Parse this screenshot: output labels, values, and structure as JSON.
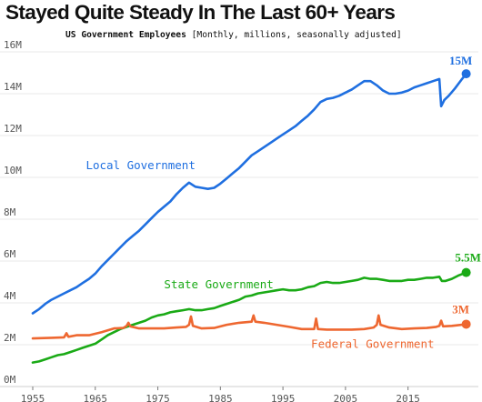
{
  "chart_data": {
    "type": "line",
    "title": "Stayed Quite Steady In The Last 60+ Years",
    "subtitle_main": "US Government Employees",
    "subtitle_note": "[Monthly, millions, seasonally adjusted]",
    "x_range": [
      1955,
      2024.5
    ],
    "ylim": [
      0,
      16
    ],
    "y_ticks": [
      0,
      2,
      4,
      6,
      8,
      10,
      12,
      14,
      16
    ],
    "y_tick_labels": [
      "0M",
      "2M",
      "4M",
      "6M",
      "8M",
      "10M",
      "12M",
      "14M",
      "16M"
    ],
    "x_ticks": [
      1955,
      1965,
      1975,
      1985,
      1995,
      2005,
      2015
    ],
    "x_tick_labels": [
      "1955",
      "1965",
      "1975",
      "1985",
      "1995",
      "2005",
      "2015"
    ],
    "grid": "horizontal",
    "series": [
      {
        "name": "Local Government",
        "color": "#1f6fe0",
        "end_label": "15M",
        "points": [
          [
            1955,
            3.5
          ],
          [
            1956,
            3.7
          ],
          [
            1957,
            3.95
          ],
          [
            1958,
            4.15
          ],
          [
            1959,
            4.3
          ],
          [
            1960,
            4.45
          ],
          [
            1961,
            4.6
          ],
          [
            1962,
            4.75
          ],
          [
            1963,
            4.95
          ],
          [
            1964,
            5.15
          ],
          [
            1965,
            5.4
          ],
          [
            1966,
            5.75
          ],
          [
            1967,
            6.05
          ],
          [
            1968,
            6.35
          ],
          [
            1969,
            6.65
          ],
          [
            1970,
            6.95
          ],
          [
            1971,
            7.2
          ],
          [
            1972,
            7.45
          ],
          [
            1973,
            7.75
          ],
          [
            1974,
            8.05
          ],
          [
            1975,
            8.35
          ],
          [
            1976,
            8.6
          ],
          [
            1977,
            8.85
          ],
          [
            1978,
            9.2
          ],
          [
            1979,
            9.5
          ],
          [
            1980,
            9.75
          ],
          [
            1981,
            9.55
          ],
          [
            1982,
            9.5
          ],
          [
            1983,
            9.45
          ],
          [
            1984,
            9.5
          ],
          [
            1985,
            9.7
          ],
          [
            1986,
            9.95
          ],
          [
            1987,
            10.2
          ],
          [
            1988,
            10.45
          ],
          [
            1989,
            10.75
          ],
          [
            1990,
            11.05
          ],
          [
            1991,
            11.25
          ],
          [
            1992,
            11.45
          ],
          [
            1993,
            11.65
          ],
          [
            1994,
            11.85
          ],
          [
            1995,
            12.05
          ],
          [
            1996,
            12.25
          ],
          [
            1997,
            12.45
          ],
          [
            1998,
            12.7
          ],
          [
            1999,
            12.95
          ],
          [
            2000,
            13.25
          ],
          [
            2001,
            13.6
          ],
          [
            2002,
            13.75
          ],
          [
            2003,
            13.8
          ],
          [
            2004,
            13.9
          ],
          [
            2005,
            14.05
          ],
          [
            2006,
            14.2
          ],
          [
            2007,
            14.4
          ],
          [
            2008,
            14.6
          ],
          [
            2009,
            14.6
          ],
          [
            2010,
            14.4
          ],
          [
            2011,
            14.15
          ],
          [
            2012,
            14.0
          ],
          [
            2013,
            14.0
          ],
          [
            2014,
            14.05
          ],
          [
            2015,
            14.15
          ],
          [
            2016,
            14.3
          ],
          [
            2017,
            14.4
          ],
          [
            2018,
            14.5
          ],
          [
            2019,
            14.6
          ],
          [
            2020,
            14.7
          ],
          [
            2020.3,
            13.4
          ],
          [
            2020.8,
            13.7
          ],
          [
            2021.5,
            13.9
          ],
          [
            2022.5,
            14.25
          ],
          [
            2023.5,
            14.65
          ],
          [
            2024.3,
            14.95
          ]
        ]
      },
      {
        "name": "State Government",
        "color": "#1aaa16",
        "end_label": "5.5M",
        "points": [
          [
            1955,
            1.15
          ],
          [
            1956,
            1.2
          ],
          [
            1957,
            1.3
          ],
          [
            1958,
            1.4
          ],
          [
            1959,
            1.5
          ],
          [
            1960,
            1.55
          ],
          [
            1961,
            1.65
          ],
          [
            1962,
            1.75
          ],
          [
            1963,
            1.85
          ],
          [
            1964,
            1.95
          ],
          [
            1965,
            2.05
          ],
          [
            1966,
            2.25
          ],
          [
            1967,
            2.45
          ],
          [
            1968,
            2.6
          ],
          [
            1969,
            2.75
          ],
          [
            1970,
            2.85
          ],
          [
            1971,
            2.95
          ],
          [
            1972,
            3.05
          ],
          [
            1973,
            3.15
          ],
          [
            1974,
            3.3
          ],
          [
            1975,
            3.4
          ],
          [
            1976,
            3.45
          ],
          [
            1977,
            3.55
          ],
          [
            1978,
            3.6
          ],
          [
            1979,
            3.65
          ],
          [
            1980,
            3.7
          ],
          [
            1981,
            3.65
          ],
          [
            1982,
            3.65
          ],
          [
            1983,
            3.7
          ],
          [
            1984,
            3.75
          ],
          [
            1985,
            3.85
          ],
          [
            1986,
            3.95
          ],
          [
            1987,
            4.05
          ],
          [
            1988,
            4.15
          ],
          [
            1989,
            4.3
          ],
          [
            1990,
            4.35
          ],
          [
            1991,
            4.45
          ],
          [
            1992,
            4.5
          ],
          [
            1993,
            4.55
          ],
          [
            1994,
            4.6
          ],
          [
            1995,
            4.65
          ],
          [
            1996,
            4.6
          ],
          [
            1997,
            4.6
          ],
          [
            1998,
            4.65
          ],
          [
            1999,
            4.75
          ],
          [
            2000,
            4.8
          ],
          [
            2001,
            4.95
          ],
          [
            2002,
            5.0
          ],
          [
            2003,
            4.95
          ],
          [
            2004,
            4.95
          ],
          [
            2005,
            5.0
          ],
          [
            2006,
            5.05
          ],
          [
            2007,
            5.1
          ],
          [
            2008,
            5.2
          ],
          [
            2009,
            5.15
          ],
          [
            2010,
            5.15
          ],
          [
            2011,
            5.1
          ],
          [
            2012,
            5.05
          ],
          [
            2013,
            5.05
          ],
          [
            2014,
            5.05
          ],
          [
            2015,
            5.1
          ],
          [
            2016,
            5.1
          ],
          [
            2017,
            5.15
          ],
          [
            2018,
            5.2
          ],
          [
            2019,
            5.2
          ],
          [
            2020,
            5.25
          ],
          [
            2020.4,
            5.05
          ],
          [
            2021,
            5.05
          ],
          [
            2022,
            5.15
          ],
          [
            2023,
            5.3
          ],
          [
            2024.3,
            5.45
          ]
        ]
      },
      {
        "name": "Federal Government",
        "color": "#ee6730",
        "end_label": "3M",
        "points": [
          [
            1955,
            2.3
          ],
          [
            1958,
            2.33
          ],
          [
            1960,
            2.35
          ],
          [
            1960.4,
            2.55
          ],
          [
            1960.7,
            2.38
          ],
          [
            1962,
            2.45
          ],
          [
            1964,
            2.45
          ],
          [
            1966,
            2.6
          ],
          [
            1968,
            2.78
          ],
          [
            1969.5,
            2.8
          ],
          [
            1970,
            2.9
          ],
          [
            1970.3,
            3.05
          ],
          [
            1970.6,
            2.88
          ],
          [
            1972,
            2.78
          ],
          [
            1974,
            2.78
          ],
          [
            1976,
            2.78
          ],
          [
            1978,
            2.82
          ],
          [
            1979.5,
            2.85
          ],
          [
            1980,
            2.95
          ],
          [
            1980.3,
            3.35
          ],
          [
            1980.6,
            2.9
          ],
          [
            1982,
            2.78
          ],
          [
            1984,
            2.8
          ],
          [
            1986,
            2.95
          ],
          [
            1988,
            3.05
          ],
          [
            1990,
            3.1
          ],
          [
            1990.3,
            3.4
          ],
          [
            1990.6,
            3.1
          ],
          [
            1992,
            3.05
          ],
          [
            1994,
            2.95
          ],
          [
            1996,
            2.85
          ],
          [
            1998,
            2.75
          ],
          [
            2000,
            2.75
          ],
          [
            2000.3,
            3.25
          ],
          [
            2000.6,
            2.75
          ],
          [
            2002,
            2.72
          ],
          [
            2004,
            2.72
          ],
          [
            2006,
            2.72
          ],
          [
            2008,
            2.75
          ],
          [
            2009.5,
            2.82
          ],
          [
            2010,
            2.95
          ],
          [
            2010.3,
            3.4
          ],
          [
            2010.6,
            2.95
          ],
          [
            2012,
            2.82
          ],
          [
            2014,
            2.75
          ],
          [
            2016,
            2.78
          ],
          [
            2018,
            2.8
          ],
          [
            2019.5,
            2.85
          ],
          [
            2020,
            2.9
          ],
          [
            2020.3,
            3.15
          ],
          [
            2020.6,
            2.88
          ],
          [
            2022,
            2.9
          ],
          [
            2024.3,
            2.98
          ]
        ]
      }
    ]
  }
}
